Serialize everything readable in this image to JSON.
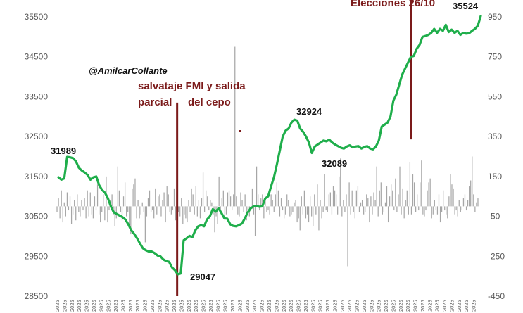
{
  "chart_data": {
    "type": "line",
    "title": "",
    "xlabel": "",
    "ylabel": "",
    "ylim": [
      28500,
      35500
    ],
    "y2lim": [
      -450,
      950
    ],
    "y_ticks": [
      28500,
      29500,
      30500,
      31500,
      32500,
      33500,
      34500,
      35500
    ],
    "y2_ticks": [
      -450,
      -250,
      -50,
      150,
      350,
      550,
      750,
      950
    ],
    "x_tick_label": "2025",
    "x_tick_count": 58,
    "grid": false,
    "legend": "none",
    "colors": {
      "line": "#1fae4b",
      "bars": "#a6a6a6",
      "marker": "#7b1a1a"
    },
    "line_series": {
      "values": [
        31480,
        31420,
        31450,
        31989,
        31980,
        31960,
        31880,
        31720,
        31650,
        31600,
        31540,
        31420,
        31480,
        31500,
        31280,
        31160,
        31090,
        30950,
        30750,
        30600,
        30560,
        30520,
        30480,
        30420,
        30300,
        30150,
        30060,
        29950,
        29820,
        29700,
        29650,
        29620,
        29620,
        29580,
        29520,
        29500,
        29420,
        29380,
        29360,
        29220,
        29150,
        29047,
        29070,
        29900,
        29950,
        30010,
        29980,
        30150,
        30250,
        30280,
        30250,
        30420,
        30500,
        30680,
        30620,
        30700,
        30580,
        30450,
        30440,
        30300,
        30260,
        30250,
        30280,
        30320,
        30450,
        30600,
        30700,
        30750,
        30760,
        30740,
        30750,
        30950,
        31000,
        31250,
        31480,
        31800,
        32150,
        32500,
        32650,
        32700,
        32850,
        32924,
        32900,
        32700,
        32620,
        32500,
        32350,
        32089,
        32250,
        32300,
        32350,
        32400,
        32380,
        32420,
        32350,
        32300,
        32260,
        32220,
        32200,
        32250,
        32280,
        32230,
        32250,
        32260,
        32200,
        32240,
        32260,
        32200,
        32180,
        32250,
        32400,
        32750,
        32800,
        32850,
        33000,
        33400,
        33550,
        33800,
        34050,
        34200,
        34350,
        34500,
        34520,
        34700,
        34800,
        35000,
        35020,
        35050,
        35100,
        35200,
        35100,
        35200,
        35150,
        35300,
        35120,
        35180,
        35100,
        35150,
        35050,
        35100,
        35080,
        35090,
        35150,
        35200,
        35280,
        35524
      ]
    },
    "bar_series": {
      "values": [
        -30,
        40,
        -60,
        80,
        -80,
        20,
        -50,
        70,
        -20,
        50,
        -90,
        -40,
        30,
        -70,
        60,
        -30,
        -50,
        30,
        -20,
        40,
        -60,
        80,
        -50,
        70,
        -40,
        -60,
        50,
        -20,
        110,
        -40,
        -80,
        -30,
        60,
        -70,
        150,
        -80,
        -20,
        30,
        60,
        -40,
        -100,
        -60,
        200,
        80,
        -30,
        -70,
        50,
        120,
        -50,
        -30,
        -100,
        -140,
        90,
        110,
        140,
        -60,
        30,
        -60,
        -40,
        20,
        -30,
        -180,
        -50,
        40,
        80,
        -30,
        -20,
        -60,
        90,
        -40,
        50,
        60,
        -50,
        30,
        70,
        -80,
        100,
        60,
        -30,
        -40,
        -20,
        90,
        -70,
        -120,
        -30,
        -50,
        40,
        -90,
        -40,
        -60,
        -80,
        30,
        -30,
        90,
        60,
        -40,
        100,
        -50,
        30,
        -60,
        40,
        170,
        -30,
        80,
        50,
        -20,
        30,
        20,
        -40,
        -130,
        -50,
        -90,
        150,
        -20,
        40,
        80,
        -70,
        -40,
        70,
        80,
        50,
        -20,
        60,
        800,
        50,
        -40,
        -50,
        70,
        30,
        -30,
        60,
        -70,
        -20,
        -50,
        -30,
        90,
        -40,
        -150,
        200,
        60,
        -20,
        40,
        60,
        -60,
        40,
        -30,
        -20,
        -40,
        60,
        30,
        -30,
        60,
        120,
        80,
        -50,
        40,
        -20,
        -60,
        -40,
        60,
        30,
        -50,
        -40,
        -30,
        20,
        30,
        -80,
        -60,
        -120,
        50,
        -40,
        80,
        -60,
        -40,
        -80,
        50,
        -50,
        -100,
        60,
        -40,
        110,
        -120,
        30,
        -60,
        -30,
        160,
        -20,
        -30,
        60,
        70,
        -40,
        100,
        80,
        60,
        -40,
        150,
        240,
        -50,
        30,
        -30,
        60,
        -300,
        120,
        -40,
        80,
        -30,
        -60,
        80,
        100,
        -30,
        20,
        30,
        -40,
        -30,
        60,
        40,
        -80,
        50,
        -40,
        70,
        30,
        200,
        -50,
        80,
        120,
        -40,
        -30,
        20,
        100,
        -80,
        50,
        110,
        80,
        -20,
        140,
        -30,
        60,
        200,
        -40,
        90,
        -60,
        30,
        80,
        -40,
        220,
        -40,
        160,
        120,
        -30,
        60,
        -20,
        120,
        230,
        -40,
        -50,
        -20,
        80,
        120,
        140,
        -60,
        -40,
        30,
        -20,
        -40,
        60,
        -80,
        -30,
        80,
        -20,
        -40,
        -60,
        50,
        160,
        110,
        90,
        -40,
        -20,
        -50,
        30,
        -30,
        -20,
        40,
        60,
        -20,
        30,
        100,
        130,
        250,
        60,
        -30,
        20,
        40
      ]
    },
    "annotations": {
      "handle": "@AmilcarCollante",
      "event1_line1": "salvataje FMI y salida",
      "event1_line2a": "parcial",
      "event1_line2b": "del cepo",
      "event2": "Elecciones 26/10",
      "start_value": "31989",
      "low_value": "29047",
      "peak_value": "32924",
      "dip_value": "32089",
      "last_value": "35524"
    }
  }
}
